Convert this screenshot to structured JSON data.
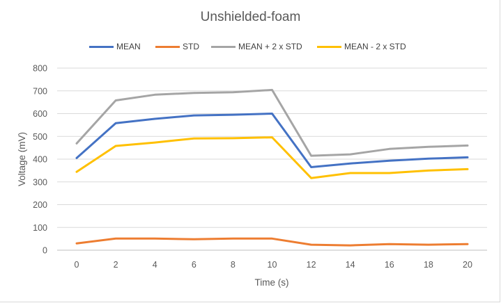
{
  "chart_data": {
    "type": "line",
    "title": "Unshielded-foam",
    "xlabel": "Time (s)",
    "ylabel": "Voltage (mV)",
    "x": [
      0,
      2,
      4,
      6,
      8,
      10,
      12,
      14,
      16,
      18,
      20
    ],
    "xlim": [
      0,
      20
    ],
    "ylim": [
      0,
      800
    ],
    "y_ticks": [
      0,
      100,
      200,
      300,
      400,
      500,
      600,
      700,
      800
    ],
    "grid": true,
    "legend_position": "top",
    "series": [
      {
        "name": "MEAN",
        "color": "#4472c4",
        "values": [
          405,
          558,
          577,
          592,
          595,
          600,
          365,
          381,
          393,
          402,
          408
        ]
      },
      {
        "name": "STD",
        "color": "#ed7d31",
        "values": [
          30,
          51,
          51,
          48,
          51,
          51,
          24,
          21,
          27,
          24,
          27
        ]
      },
      {
        "name": "MEAN + 2 x STD",
        "color": "#a5a5a5",
        "values": [
          469,
          658,
          683,
          691,
          694,
          704,
          415,
          421,
          445,
          454,
          460
        ]
      },
      {
        "name": "MEAN - 2 x  STD",
        "color": "#ffc000",
        "values": [
          344,
          458,
          473,
          491,
          492,
          496,
          317,
          339,
          339,
          350,
          356
        ]
      }
    ]
  }
}
